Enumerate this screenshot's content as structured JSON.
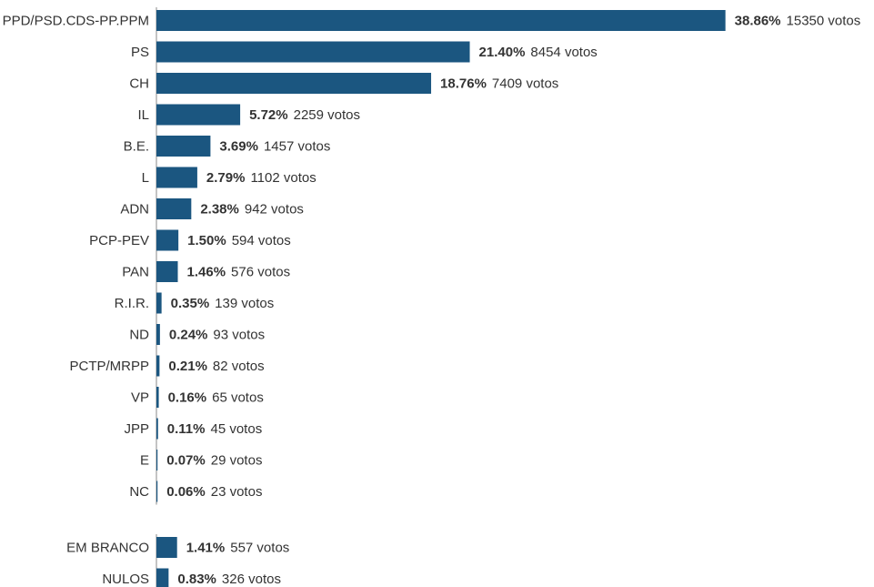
{
  "chart_data": {
    "type": "bar",
    "orientation": "horizontal",
    "color": "#1b5680",
    "axis_color": "#888888",
    "votes_suffix": "votos",
    "groups": [
      {
        "name": "parties",
        "rows": [
          {
            "category": "PPD/PSD.CDS-PP.PPM",
            "percent": 38.86,
            "percent_label": "38.86%",
            "votes": 15350
          },
          {
            "category": "PS",
            "percent": 21.4,
            "percent_label": "21.40%",
            "votes": 8454
          },
          {
            "category": "CH",
            "percent": 18.76,
            "percent_label": "18.76%",
            "votes": 7409
          },
          {
            "category": "IL",
            "percent": 5.72,
            "percent_label": "5.72%",
            "votes": 2259
          },
          {
            "category": "B.E.",
            "percent": 3.69,
            "percent_label": "3.69%",
            "votes": 1457
          },
          {
            "category": "L",
            "percent": 2.79,
            "percent_label": "2.79%",
            "votes": 1102
          },
          {
            "category": "ADN",
            "percent": 2.38,
            "percent_label": "2.38%",
            "votes": 942
          },
          {
            "category": "PCP-PEV",
            "percent": 1.5,
            "percent_label": "1.50%",
            "votes": 594
          },
          {
            "category": "PAN",
            "percent": 1.46,
            "percent_label": "1.46%",
            "votes": 576
          },
          {
            "category": "R.I.R.",
            "percent": 0.35,
            "percent_label": "0.35%",
            "votes": 139
          },
          {
            "category": "ND",
            "percent": 0.24,
            "percent_label": "0.24%",
            "votes": 93
          },
          {
            "category": "PCTP/MRPP",
            "percent": 0.21,
            "percent_label": "0.21%",
            "votes": 82
          },
          {
            "category": "VP",
            "percent": 0.16,
            "percent_label": "0.16%",
            "votes": 65
          },
          {
            "category": "JPP",
            "percent": 0.11,
            "percent_label": "0.11%",
            "votes": 45
          },
          {
            "category": "E",
            "percent": 0.07,
            "percent_label": "0.07%",
            "votes": 29
          },
          {
            "category": "NC",
            "percent": 0.06,
            "percent_label": "0.06%",
            "votes": 23
          }
        ]
      },
      {
        "name": "blank-null",
        "rows": [
          {
            "category": "EM BRANCO",
            "percent": 1.41,
            "percent_label": "1.41%",
            "votes": 557
          },
          {
            "category": "NULOS",
            "percent": 0.83,
            "percent_label": "0.83%",
            "votes": 326
          }
        ]
      }
    ]
  }
}
